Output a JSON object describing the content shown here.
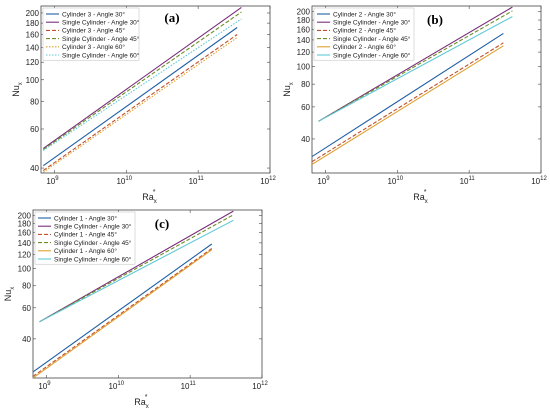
{
  "colors": {
    "blue": "#1f5fa5",
    "purple": "#7a2d7a",
    "red": "#c0502a",
    "olive": "#6b8e23",
    "gold": "#e0a030",
    "cyan": "#5fc8d8"
  },
  "chart_data": [
    {
      "type": "line",
      "panel_label": "(a)",
      "xlabel": "Ra",
      "xlabel_sub": "x",
      "xlabel_sup": "*",
      "ylabel": "Nu",
      "ylabel_sub": "x",
      "x_scale": "log",
      "y_scale": "log",
      "xlim": [
        650000000.0,
        1000000000000.0
      ],
      "ylim": [
        38,
        215
      ],
      "x_ticks": [
        1000000000.0,
        10000000000.0,
        100000000000.0,
        1000000000000.0
      ],
      "x_tick_labels": [
        [
          "10",
          "9"
        ],
        [
          "10",
          "10"
        ],
        [
          "10",
          "11"
        ],
        [
          "10",
          "12"
        ]
      ],
      "y_ticks": [
        40,
        60,
        80,
        100,
        120,
        140,
        160,
        180,
        200
      ],
      "legend_position": "top-left",
      "series": [
        {
          "name": "Cylinder 3 - Angle 30°",
          "color_key": "blue",
          "dash": "solid",
          "x": [
            700000000.0,
            350000000000.0
          ],
          "y": [
            41,
            172
          ]
        },
        {
          "name": "Single Cylinder - Angle 30°",
          "color_key": "purple",
          "dash": "solid",
          "x": [
            700000000.0,
            400000000000.0
          ],
          "y": [
            49,
            212
          ]
        },
        {
          "name": "Cylinder 3 - Angle 45°",
          "color_key": "red",
          "dash": "dashed",
          "x": [
            700000000.0,
            350000000000.0
          ],
          "y": [
            39,
            160
          ]
        },
        {
          "name": "Single Cylinder - Angle 45°",
          "color_key": "olive",
          "dash": "dashed",
          "x": [
            700000000.0,
            400000000000.0
          ],
          "y": [
            48.5,
            202
          ]
        },
        {
          "name": "Cylinder 3 - Angle 60°",
          "color_key": "gold",
          "dash": "dotted",
          "x": [
            700000000.0,
            350000000000.0
          ],
          "y": [
            38.3,
            155
          ]
        },
        {
          "name": "Single Cylinder - Angle 60°",
          "color_key": "cyan",
          "dash": "dotted",
          "x": [
            700000000.0,
            400000000000.0
          ],
          "y": [
            48,
            188
          ]
        }
      ]
    },
    {
      "type": "line",
      "panel_label": "(b)",
      "xlabel": "Ra",
      "xlabel_sub": "x",
      "xlabel_sup": "*",
      "ylabel": "Nu",
      "ylabel_sub": "x",
      "x_scale": "log",
      "y_scale": "log",
      "xlim": [
        650000000.0,
        1000000000000.0
      ],
      "ylim": [
        26,
        215
      ],
      "x_ticks": [
        1000000000.0,
        10000000000.0,
        100000000000.0,
        1000000000000.0
      ],
      "x_tick_labels": [
        [
          "10",
          "9"
        ],
        [
          "10",
          "10"
        ],
        [
          "10",
          "11"
        ],
        [
          "10",
          "12"
        ]
      ],
      "y_ticks": [
        40,
        60,
        80,
        100,
        120,
        140,
        160,
        180,
        200
      ],
      "legend_position": "top-left",
      "series": [
        {
          "name": "Cylinder 2 - Angle 30°",
          "color_key": "blue",
          "dash": "solid",
          "x": [
            650000000.0,
            300000000000.0
          ],
          "y": [
            32,
            152
          ]
        },
        {
          "name": "Single Cylinder - Angle 30°",
          "color_key": "purple",
          "dash": "solid",
          "x": [
            800000000.0,
            400000000000.0
          ],
          "y": [
            50,
            212
          ]
        },
        {
          "name": "Cylinder 2 - Angle 45°",
          "color_key": "red",
          "dash": "dashed",
          "x": [
            650000000.0,
            300000000000.0
          ],
          "y": [
            30,
            135
          ]
        },
        {
          "name": "Single Cylinder - Angle 45°",
          "color_key": "olive",
          "dash": "dashed",
          "x": [
            800000000.0,
            400000000000.0
          ],
          "y": [
            50,
            202
          ]
        },
        {
          "name": "Cylinder 2 - Angle 60°",
          "color_key": "gold",
          "dash": "solid",
          "x": [
            650000000.0,
            300000000000.0
          ],
          "y": [
            29,
            130
          ]
        },
        {
          "name": "Single Cylinder - Angle 60°",
          "color_key": "cyan",
          "dash": "solid",
          "x": [
            800000000.0,
            400000000000.0
          ],
          "y": [
            50,
            188
          ]
        }
      ]
    },
    {
      "type": "line",
      "panel_label": "(c)",
      "xlabel": "Ra",
      "xlabel_sub": "x",
      "xlabel_sup": "*",
      "ylabel": "Nu",
      "ylabel_sub": "x",
      "x_scale": "log",
      "y_scale": "log",
      "xlim": [
        650000000.0,
        1000000000000.0
      ],
      "ylim": [
        24,
        215
      ],
      "x_ticks": [
        1000000000.0,
        10000000000.0,
        100000000000.0,
        1000000000000.0
      ],
      "x_tick_labels": [
        [
          "10",
          "9"
        ],
        [
          "10",
          "10"
        ],
        [
          "10",
          "11"
        ],
        [
          "10",
          "12"
        ]
      ],
      "y_ticks": [
        40,
        60,
        80,
        100,
        120,
        140,
        160,
        180,
        200
      ],
      "legend_position": "top-left",
      "series": [
        {
          "name": "Cylinder 1 - Angle 30°",
          "color_key": "blue",
          "dash": "solid",
          "x": [
            650000000.0,
            200000000000.0
          ],
          "y": [
            26,
            138
          ]
        },
        {
          "name": "Single Cylinder - Angle 30°",
          "color_key": "purple",
          "dash": "solid",
          "x": [
            800000000.0,
            400000000000.0
          ],
          "y": [
            50,
            212
          ]
        },
        {
          "name": "Cylinder 1 - Angle 45°",
          "color_key": "red",
          "dash": "dashed",
          "x": [
            650000000.0,
            200000000000.0
          ],
          "y": [
            24.5,
            130
          ]
        },
        {
          "name": "Single Cylinder - Angle 45°",
          "color_key": "olive",
          "dash": "dashed",
          "x": [
            800000000.0,
            400000000000.0
          ],
          "y": [
            50,
            202
          ]
        },
        {
          "name": "Cylinder 1 - Angle 60°",
          "color_key": "gold",
          "dash": "solid",
          "x": [
            650000000.0,
            200000000000.0
          ],
          "y": [
            24,
            128
          ]
        },
        {
          "name": "Single Cylinder - Angle 60°",
          "color_key": "cyan",
          "dash": "solid",
          "x": [
            800000000.0,
            400000000000.0
          ],
          "y": [
            50,
            188
          ]
        }
      ]
    }
  ]
}
